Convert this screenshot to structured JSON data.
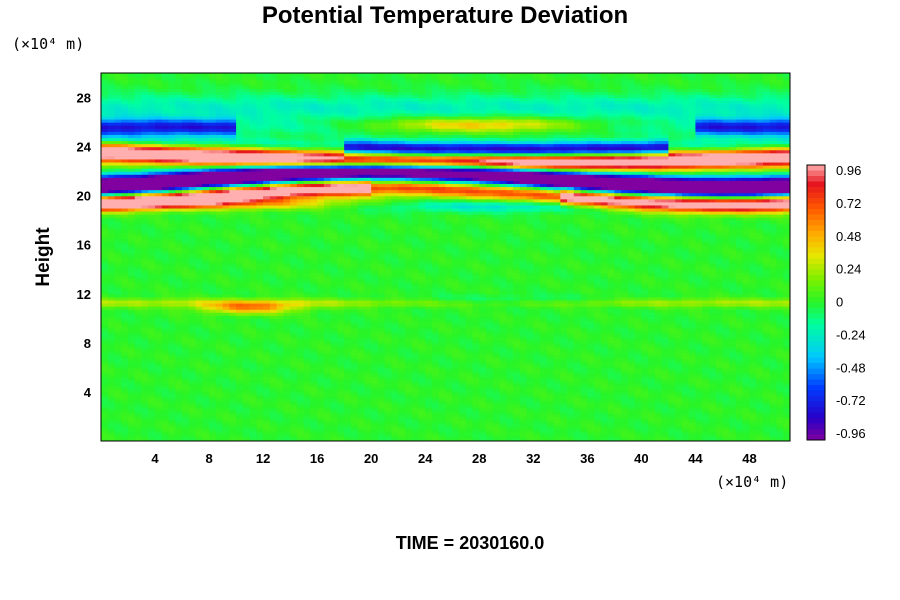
{
  "chart_data": {
    "type": "heatmap",
    "title": "Potential Temperature Deviation",
    "ylabel": "Height",
    "yunit": "(×10⁴ m)",
    "xunit": "(×10⁴ m)",
    "xlabel": "",
    "time_label": "TIME = 2030160.0",
    "xlim": [
      0,
      51
    ],
    "ylim": [
      0,
      30
    ],
    "x_ticks": [
      4,
      8,
      12,
      16,
      20,
      24,
      28,
      32,
      36,
      40,
      44,
      48
    ],
    "y_ticks": [
      4,
      8,
      12,
      16,
      20,
      24,
      28
    ],
    "colorbar": {
      "vmin": -1.0,
      "vmax": 1.0,
      "ticks": [
        "0.96",
        "0.72",
        "0.48",
        "0.24",
        "0",
        "-0.24",
        "-0.48",
        "-0.72",
        "-0.96"
      ]
    },
    "grid": false,
    "features": [
      {
        "name": "bottom band",
        "y_center": 19.6,
        "amplitude": 0.6
      },
      {
        "name": "top band",
        "y_center": 25.5,
        "amplitude": -0.6
      },
      {
        "name": "upper core",
        "y_center": 23.0,
        "amplitude": 1.0
      },
      {
        "name": "lower core",
        "y_center": 21.0,
        "amplitude": -1.0
      },
      {
        "name": "mid-level streak",
        "y_center": 11.5,
        "amplitude": 0.35
      }
    ]
  }
}
